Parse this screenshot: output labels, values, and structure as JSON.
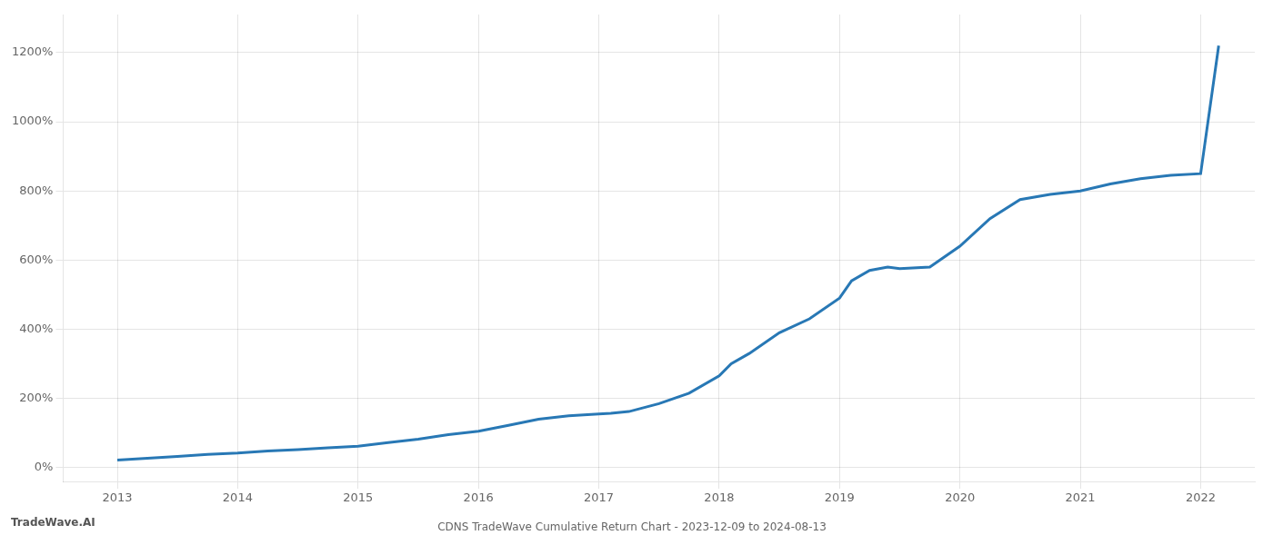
{
  "chart_data": {
    "type": "line",
    "title": "CDNS TradeWave Cumulative Return Chart - 2023-12-09 to 2024-08-13",
    "annotations": [
      "TradeWave.AI"
    ],
    "color": "#2878b5",
    "grid": true,
    "x": [
      2013.0,
      2013.25,
      2013.5,
      2013.75,
      2014.0,
      2014.25,
      2014.5,
      2014.75,
      2015.0,
      2015.25,
      2015.5,
      2015.75,
      2016.0,
      2016.25,
      2016.5,
      2016.75,
      2017.0,
      2017.1,
      2017.25,
      2017.5,
      2017.75,
      2018.0,
      2018.1,
      2018.25,
      2018.5,
      2018.75,
      2019.0,
      2019.1,
      2019.25,
      2019.4,
      2019.5,
      2019.75,
      2020.0,
      2020.25,
      2020.5,
      2020.75,
      2021.0,
      2021.25,
      2021.5,
      2021.75,
      2022.0,
      2022.15
    ],
    "values": [
      22,
      27,
      32,
      38,
      42,
      48,
      52,
      57,
      62,
      72,
      82,
      95,
      105,
      122,
      140,
      150,
      155,
      157,
      162,
      185,
      215,
      265,
      300,
      330,
      390,
      430,
      490,
      540,
      570,
      580,
      575,
      580,
      640,
      720,
      775,
      790,
      800,
      820,
      835,
      845,
      850,
      1220
    ],
    "xlim": [
      2012.55,
      2022.45
    ],
    "xticks": [
      2013,
      2014,
      2015,
      2016,
      2017,
      2018,
      2019,
      2020,
      2021,
      2022
    ],
    "ylim": [
      -40,
      1310
    ],
    "yticks": [
      {
        "value": 0,
        "label": "0%"
      },
      {
        "value": 200,
        "label": "200%"
      },
      {
        "value": 400,
        "label": "400%"
      },
      {
        "value": 600,
        "label": "600%"
      },
      {
        "value": 800,
        "label": "800%"
      },
      {
        "value": 1000,
        "label": "1000%"
      },
      {
        "value": 1200,
        "label": "1200%"
      }
    ]
  }
}
